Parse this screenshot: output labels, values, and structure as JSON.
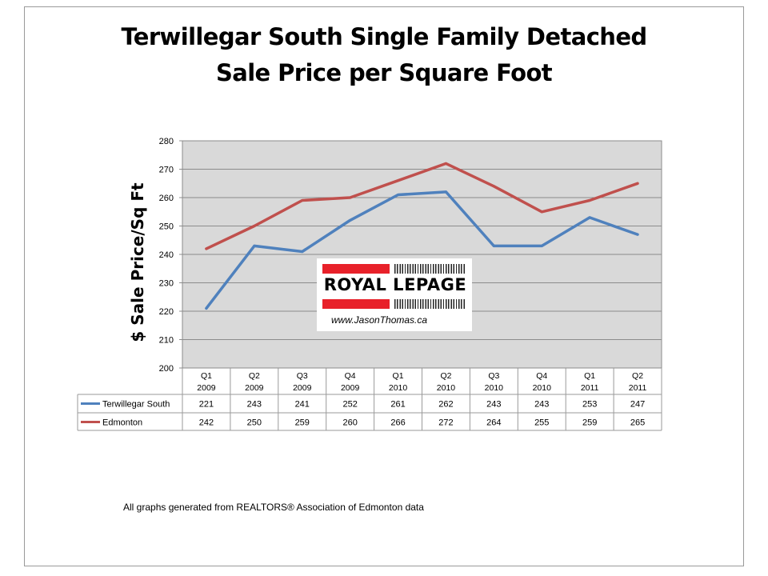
{
  "page": {
    "title_line1": "Terwillegar South Single Family Detached",
    "title_line2": "Sale Price per Square Foot",
    "footnote": "All graphs generated from REALTORS® Association of Edmonton data"
  },
  "logo": {
    "wordmark": "ROYAL LEPAGE",
    "url": "www.JasonThomas.ca"
  },
  "chart_data": {
    "type": "line",
    "title": "Terwillegar South Single Family Detached Sale Price per Square Foot",
    "ylabel": "$ Sale Price/Sq Ft",
    "xlabel": "",
    "ylim": [
      200,
      280
    ],
    "yticks": [
      200,
      210,
      220,
      230,
      240,
      250,
      260,
      270,
      280
    ],
    "grid": true,
    "legend": "data-table",
    "categories": [
      "Q1 2009",
      "Q2 2009",
      "Q3 2009",
      "Q4 2009",
      "Q1 2010",
      "Q2 2010",
      "Q3 2010",
      "Q4 2010",
      "Q1 2011",
      "Q2 2011"
    ],
    "series": [
      {
        "name": "Terwillegar South",
        "color": "#4f81bd",
        "values": [
          221,
          243,
          241,
          252,
          261,
          262,
          243,
          243,
          253,
          247
        ]
      },
      {
        "name": "Edmonton",
        "color": "#c0504d",
        "values": [
          242,
          250,
          259,
          260,
          266,
          272,
          264,
          255,
          259,
          265
        ]
      }
    ]
  }
}
